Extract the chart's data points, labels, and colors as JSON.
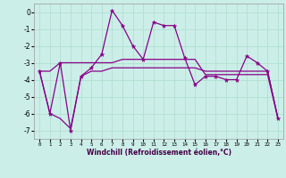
{
  "xlabel": "Windchill (Refroidissement éolien,°C)",
  "background_color": "#cceee8",
  "grid_color": "#aaddcc",
  "line_color": "#880088",
  "xlim": [
    -0.5,
    23.5
  ],
  "ylim": [
    -7.5,
    0.5
  ],
  "yticks": [
    0,
    -1,
    -2,
    -3,
    -4,
    -5,
    -6,
    -7
  ],
  "xticks": [
    0,
    1,
    2,
    3,
    4,
    5,
    6,
    7,
    8,
    9,
    10,
    11,
    12,
    13,
    14,
    15,
    16,
    17,
    18,
    19,
    20,
    21,
    22,
    23
  ],
  "line1_x": [
    0,
    1,
    2,
    3,
    4,
    5,
    6,
    7,
    8,
    9,
    10,
    11,
    12,
    13,
    14,
    15,
    16,
    17,
    18,
    19,
    20,
    21,
    22,
    23
  ],
  "line1_y": [
    -3.5,
    -6.0,
    -3.0,
    -7.0,
    -3.8,
    -3.3,
    -2.5,
    0.1,
    -0.8,
    -2.0,
    -2.8,
    -0.6,
    -0.8,
    -0.8,
    -2.7,
    -4.3,
    -3.8,
    -3.8,
    -4.0,
    -4.0,
    -2.6,
    -3.0,
    -3.5,
    -6.3
  ],
  "line2_x": [
    0,
    1,
    2,
    3,
    4,
    5,
    6,
    7,
    8,
    9,
    10,
    11,
    12,
    13,
    14,
    15,
    16,
    17,
    18,
    19,
    20,
    21,
    22,
    23
  ],
  "line2_y": [
    -3.5,
    -3.5,
    -3.0,
    -3.0,
    -3.0,
    -3.0,
    -3.0,
    -3.0,
    -2.8,
    -2.8,
    -2.8,
    -2.8,
    -2.8,
    -2.8,
    -2.8,
    -2.8,
    -3.7,
    -3.7,
    -3.7,
    -3.7,
    -3.7,
    -3.7,
    -3.7,
    -6.3
  ],
  "line3_x": [
    0,
    1,
    2,
    3,
    4,
    5,
    6,
    7,
    8,
    9,
    10,
    11,
    12,
    13,
    14,
    15,
    16,
    17,
    18,
    19,
    20,
    21,
    22,
    23
  ],
  "line3_y": [
    -3.5,
    -6.0,
    -6.3,
    -6.9,
    -3.8,
    -3.5,
    -3.5,
    -3.3,
    -3.3,
    -3.3,
    -3.3,
    -3.3,
    -3.3,
    -3.3,
    -3.3,
    -3.3,
    -3.5,
    -3.5,
    -3.5,
    -3.5,
    -3.5,
    -3.5,
    -3.5,
    -6.3
  ],
  "xtick_fontsize": 4.2,
  "ytick_fontsize": 5.5,
  "xlabel_fontsize": 5.5,
  "linewidth": 0.9,
  "markersize": 3.5
}
